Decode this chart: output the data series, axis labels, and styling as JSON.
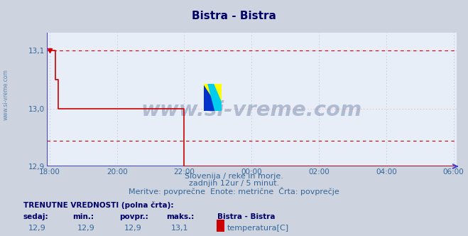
{
  "title": "Bistra - Bistra",
  "bg_color": "#cdd4e0",
  "plot_bg_color": "#e8eef8",
  "grid_color_h": "#ffb0b0",
  "grid_color_v": "#c8c8d8",
  "line_color": "#cc0000",
  "line_width": 1.2,
  "ylim": [
    12.9,
    13.13
  ],
  "yticks": [
    12.9,
    13.0,
    13.1
  ],
  "ytick_labels": [
    "12,9",
    "13,0",
    "13,1"
  ],
  "xtick_labels": [
    "18:00",
    "20:00",
    "22:00",
    "00:00",
    "02:00",
    "04:00",
    "06:00"
  ],
  "xtick_positions": [
    0,
    24,
    48,
    72,
    96,
    120,
    144
  ],
  "total_points": 145,
  "subtitle1": "Slovenija / reke in morje.",
  "subtitle2": "zadnjih 12ur / 5 minut.",
  "subtitle3": "Meritve: povprečne  Enote: metrične  Črta: povprečje",
  "footer_title": "TRENUTNE VREDNOSTI (polna črta):",
  "footer_cols": [
    "sedaj:",
    "min.:",
    "povpr.:",
    "maks.:"
  ],
  "footer_vals": [
    "12,9",
    "12,9",
    "12,9",
    "13,1"
  ],
  "footer_series_name": "Bistra - Bistra",
  "footer_series_label": "temperatura[C]",
  "footer_series_color": "#cc0000",
  "dashed_line_top": 13.1,
  "dashed_line_mid": 12.944,
  "watermark_text": "www.si-vreme.com",
  "watermark_color": "#1a3a6e",
  "watermark_alpha": 0.28,
  "axis_color": "#4444cc",
  "tick_color": "#336699",
  "title_color": "#000066",
  "title_fontsize": 11,
  "subtitle_color": "#336699",
  "subtitle_fontsize": 8,
  "footer_label_color": "#000066",
  "footer_val_color": "#336699",
  "sidewater_color": "#336699"
}
